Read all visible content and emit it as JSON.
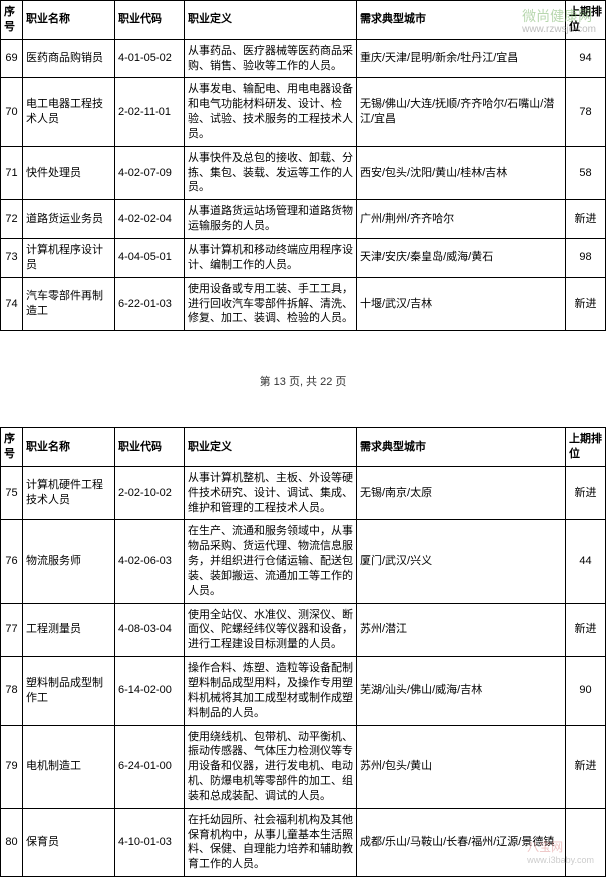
{
  "headers": {
    "seq": "序号",
    "name": "职业名称",
    "code": "职业代码",
    "def": "职业定义",
    "city": "需求典型城市",
    "rank": "上期排位"
  },
  "page_label": "第 13 页, 共 22 页",
  "watermark_top": {
    "title": "微尚健康网",
    "url": "www.rzwsjd.com"
  },
  "watermark_bottom": {
    "title": "八宝网",
    "url": "www.i3baby.com"
  },
  "rows_top": [
    {
      "n": "69",
      "name": "医药商品购销员",
      "code": "4-01-05-02",
      "def": "从事药品、医疗器械等医药商品采购、销售、验收等工作的人员。",
      "city": "重庆/天津/昆明/新余/牡丹江/宜昌",
      "rank": "94"
    },
    {
      "n": "70",
      "name": "电工电器工程技术人员",
      "code": "2-02-11-01",
      "def": "从事发电、输配电、用电电器设备和电气功能材料研发、设计、检验、试验、技术服务的工程技术人员。",
      "city": "无锡/佛山/大连/抚顺/齐齐哈尔/石嘴山/潜江/宜昌",
      "rank": "78"
    },
    {
      "n": "71",
      "name": "快件处理员",
      "code": "4-02-07-09",
      "def": "从事快件及总包的接收、卸载、分拣、集包、装载、发运等工作的人员。",
      "city": "西安/包头/沈阳/黄山/桂林/吉林",
      "rank": "58"
    },
    {
      "n": "72",
      "name": "道路货运业务员",
      "code": "4-02-02-04",
      "def": "从事道路货运站场管理和道路货物运输服务的人员。",
      "city": "广州/荆州/齐齐哈尔",
      "rank": "新进"
    },
    {
      "n": "73",
      "name": "计算机程序设计员",
      "code": "4-04-05-01",
      "def": "从事计算机和移动终端应用程序设计、编制工作的人员。",
      "city": "天津/安庆/秦皇岛/威海/黄石",
      "rank": "98"
    },
    {
      "n": "74",
      "name": "汽车零部件再制造工",
      "code": "6-22-01-03",
      "def": "使用设备或专用工装、手工工具，进行回收汽车零部件拆解、清洗、修复、加工、装调、检验的人员。",
      "city": "十堰/武汉/吉林",
      "rank": "新进"
    }
  ],
  "rows_bottom": [
    {
      "n": "75",
      "name": "计算机硬件工程技术人员",
      "code": "2-02-10-02",
      "def": "从事计算机整机、主板、外设等硬件技术研究、设计、调试、集成、维护和管理的工程技术人员。",
      "city": "无锡/南京/太原",
      "rank": "新进"
    },
    {
      "n": "76",
      "name": "物流服务师",
      "code": "4-02-06-03",
      "def": "在生产、流通和服务领域中，从事物品采购、货运代理、物流信息服务，并组织进行仓储运输、配送包装、装卸搬运、流通加工等工作的人员。",
      "city": "厦门/武汉/兴义",
      "rank": "44"
    },
    {
      "n": "77",
      "name": "工程测量员",
      "code": "4-08-03-04",
      "def": "使用全站仪、水准仪、测深仪、断面仪、陀螺经纬仪等仪器和设备，进行工程建设目标测量的人员。",
      "city": "苏州/潜江",
      "rank": "新进"
    },
    {
      "n": "78",
      "name": "塑料制品成型制作工",
      "code": "6-14-02-00",
      "def": "操作合料、炼塑、造粒等设备配制塑料制品成型用料，及操作专用塑料机械将其加工成型材或制作成塑料制品的人员。",
      "city": "芜湖/汕头/佛山/威海/吉林",
      "rank": "90"
    },
    {
      "n": "79",
      "name": "电机制造工",
      "code": "6-24-01-00",
      "def": "使用绕线机、包带机、动平衡机、振动传感器、气体压力检测仪等专用设备和仪器，进行发电机、电动机、防爆电机等零部件的加工、组装和总成装配、调试的人员。",
      "city": "苏州/包头/黄山",
      "rank": "新进"
    },
    {
      "n": "80",
      "name": "保育员",
      "code": "4-10-01-03",
      "def": "在托幼园所、社会福利机构及其他保育机构中，从事儿童基本生活照料、保健、自理能力培养和辅助教育工作的人员。",
      "city": "成都/乐山/马鞍山/长春/福州/辽源/景德镇",
      "rank": ""
    }
  ]
}
